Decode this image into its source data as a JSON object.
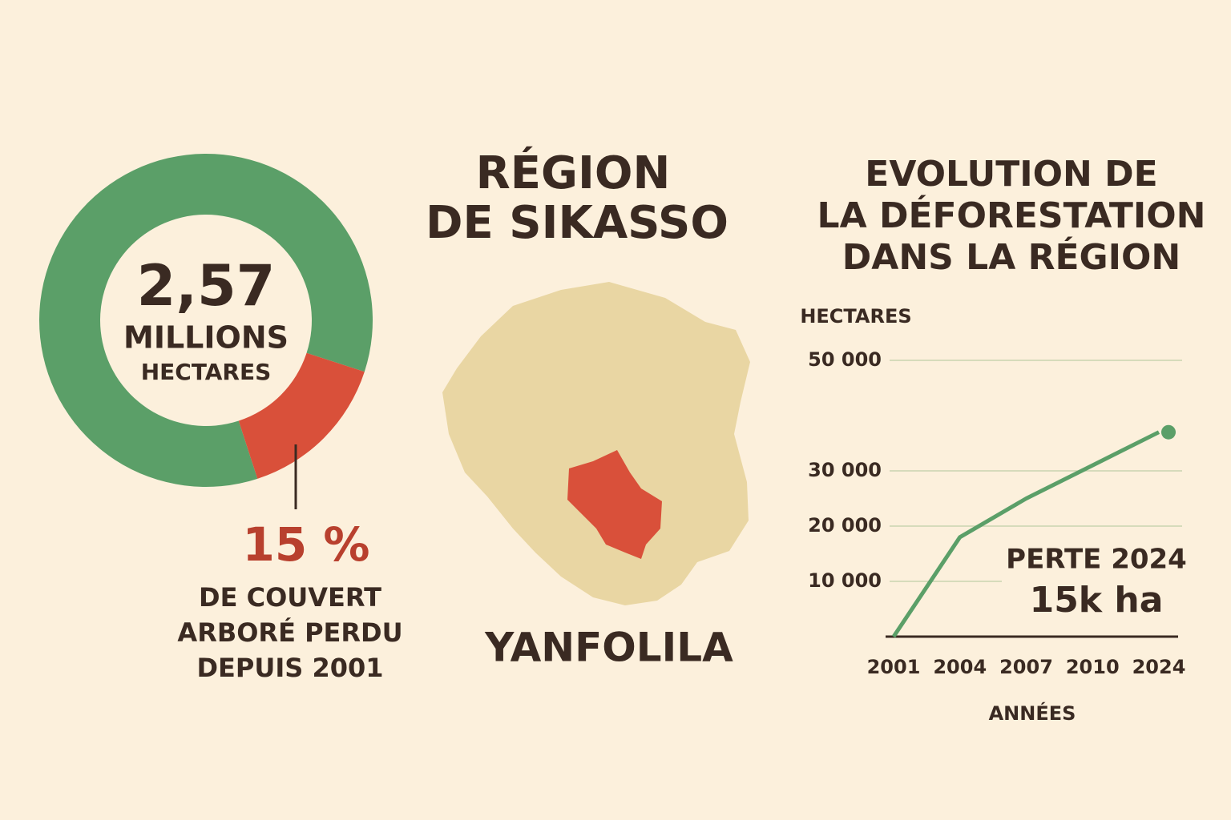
{
  "chart_data": [
    {
      "type": "pie",
      "center_value": "2,57",
      "center_label": [
        "MILLIONS",
        "HECTARES"
      ],
      "values": [
        85,
        15
      ],
      "value_labels": [
        null,
        "15 %"
      ],
      "colors": [
        "#5b9f68",
        "#d9503a"
      ],
      "caption": [
        "DE COUVERT",
        "ARBORÉ PERDU",
        "DEPUIS 2001"
      ]
    },
    {
      "type": "line",
      "title": [
        "EVOLUTION DE",
        "LA DÉFORESTATION",
        "DANS LA RÉGION"
      ],
      "y_label": "HECTARES",
      "x_label": "ANNÉES",
      "categories": [
        "2001",
        "2004",
        "2007",
        "2010",
        "2024"
      ],
      "series": [
        {
          "name": null,
          "color": "#5b9f68",
          "values": [
            0,
            18000,
            25000,
            31000,
            37000
          ]
        }
      ],
      "ylim": [
        0,
        50000
      ],
      "yticks": [
        {
          "value": 10000,
          "label": "10 000"
        },
        {
          "value": 20000,
          "label": "20 000"
        },
        {
          "value": 30000,
          "label": "30 000"
        },
        {
          "value": 50000,
          "label": "50 000"
        }
      ],
      "grid": true,
      "annotation": [
        "PERTE 2024",
        "15k ha"
      ]
    }
  ],
  "map": {
    "title": [
      "RÉGION",
      "DE SIKASSO"
    ],
    "label": "YANFOLILA"
  }
}
